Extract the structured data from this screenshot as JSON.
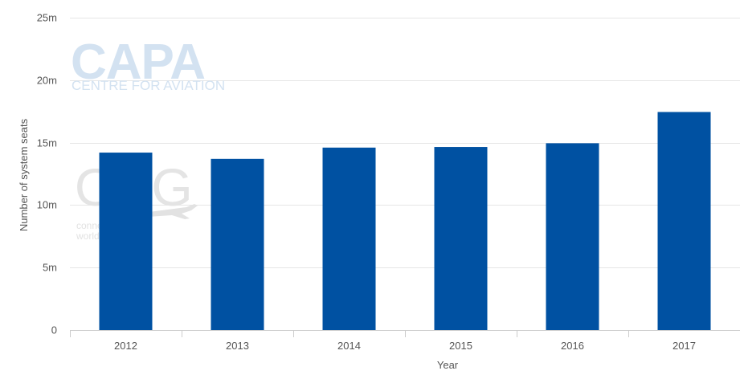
{
  "chart_data": {
    "type": "bar",
    "categories": [
      "2012",
      "2013",
      "2014",
      "2015",
      "2016",
      "2017"
    ],
    "values": [
      14.2,
      13.7,
      14.6,
      14.65,
      14.95,
      17.45
    ],
    "ylim": [
      0,
      25
    ],
    "yticks": [
      {
        "value": 0,
        "label": "0"
      },
      {
        "value": 5,
        "label": "5m"
      },
      {
        "value": 10,
        "label": "10m"
      },
      {
        "value": 15,
        "label": "15m"
      },
      {
        "value": 20,
        "label": "20m"
      },
      {
        "value": 25,
        "label": "25m"
      }
    ],
    "xlabel": "Year",
    "ylabel": "Number of system seats",
    "bar_color": "#0051a2",
    "grid": true,
    "legend": "none"
  },
  "watermarks": {
    "capa_title": "CAPA",
    "capa_subtitle": "CENTRE FOR AVIATION",
    "oag_title": "OAG",
    "oag_line1": "connecting the",
    "oag_line2": "world"
  }
}
